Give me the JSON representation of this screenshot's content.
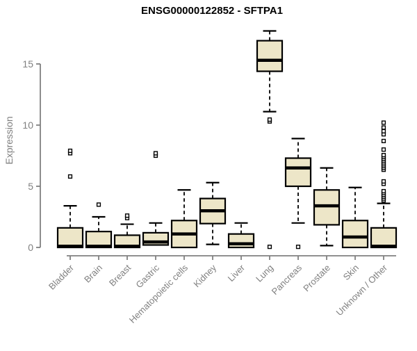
{
  "chart_data": {
    "type": "boxplot",
    "title": "ENSG00000122852 - SFTPA1",
    "ylabel": "Expression",
    "xlabel": "",
    "ylim": [
      0,
      18.2
    ],
    "yticks": [
      0,
      5,
      10,
      15
    ],
    "grid": false,
    "legend": "none",
    "colors": {
      "box_fill": "#EDE6C8",
      "box_border": "#000000",
      "median": "#000000",
      "axis": "#808080",
      "tick_label": "#808080",
      "title": "#000000"
    },
    "categories": [
      "Bladder",
      "Brain",
      "Breast",
      "Gastric",
      "Hematopoietic cells",
      "Kidney",
      "Liver",
      "Lung",
      "Pancreas",
      "Prostate",
      "Skin",
      "Unknown / Other"
    ],
    "boxes": [
      {
        "category": "Bladder",
        "whisker_low": 0,
        "q1": 0,
        "median": 0.1,
        "q3": 1.6,
        "whisker_high": 3.4,
        "outliers": [
          5.8,
          7.7,
          7.9
        ]
      },
      {
        "category": "Brain",
        "whisker_low": 0,
        "q1": 0,
        "median": 0.1,
        "q3": 1.3,
        "whisker_high": 2.5,
        "outliers": [
          3.5
        ]
      },
      {
        "category": "Breast",
        "whisker_low": 0,
        "q1": 0,
        "median": 0.1,
        "q3": 1.0,
        "whisker_high": 1.9,
        "outliers": [
          2.4,
          2.6
        ]
      },
      {
        "category": "Gastric",
        "whisker_low": 0.2,
        "q1": 0.2,
        "median": 0.45,
        "q3": 1.2,
        "whisker_high": 2.0,
        "outliers": [
          7.5,
          7.7
        ]
      },
      {
        "category": "Hematopoietic cells",
        "whisker_low": 0,
        "q1": 0,
        "median": 1.1,
        "q3": 2.2,
        "whisker_high": 4.7,
        "outliers": []
      },
      {
        "category": "Kidney",
        "whisker_low": 0.25,
        "q1": 1.95,
        "median": 3.0,
        "q3": 4.0,
        "whisker_high": 5.3,
        "outliers": []
      },
      {
        "category": "Liver",
        "whisker_low": 0,
        "q1": 0,
        "median": 0.3,
        "q3": 1.1,
        "whisker_high": 2.0,
        "outliers": []
      },
      {
        "category": "Lung",
        "whisker_low": 11.1,
        "q1": 14.4,
        "median": 15.3,
        "q3": 16.9,
        "whisker_high": 17.7,
        "outliers": [
          0.05,
          10.3,
          10.45
        ]
      },
      {
        "category": "Pancreas",
        "whisker_low": 2.0,
        "q1": 5.0,
        "median": 6.5,
        "q3": 7.3,
        "whisker_high": 8.9,
        "outliers": [
          0.05
        ]
      },
      {
        "category": "Prostate",
        "whisker_low": 0.15,
        "q1": 1.85,
        "median": 3.4,
        "q3": 4.7,
        "whisker_high": 6.5,
        "outliers": []
      },
      {
        "category": "Skin",
        "whisker_low": 0,
        "q1": 0,
        "median": 0.85,
        "q3": 2.2,
        "whisker_high": 4.9,
        "outliers": []
      },
      {
        "category": "Unknown / Other",
        "whisker_low": 0,
        "q1": 0,
        "median": 0.1,
        "q3": 1.6,
        "whisker_high": 3.6,
        "outliers": [
          3.85,
          4.0,
          4.15,
          4.3,
          4.45,
          4.6,
          5.2,
          5.4,
          6.35,
          6.5,
          6.65,
          6.8,
          6.95,
          7.1,
          7.25,
          7.4,
          7.55,
          8.0,
          8.7,
          9.25,
          9.5,
          9.8,
          10.2
        ]
      }
    ]
  }
}
